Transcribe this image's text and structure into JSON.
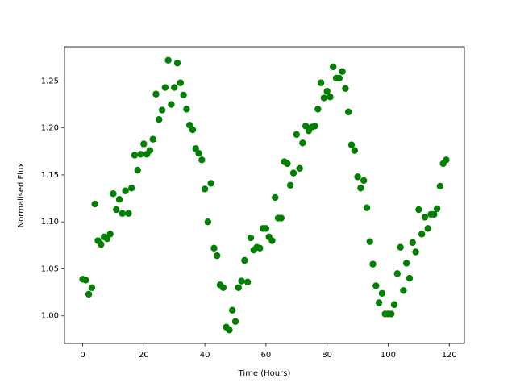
{
  "chart_data": {
    "type": "scatter",
    "xlabel": "Time (Hours)",
    "ylabel": "Normalised Flux",
    "color": "#008000",
    "x": [
      0,
      1,
      2,
      3,
      4,
      5,
      6,
      7,
      8,
      9,
      10,
      11,
      12,
      13,
      14,
      15,
      16,
      17,
      18,
      19,
      20,
      21,
      22,
      23,
      24,
      25,
      26,
      27,
      28,
      29,
      30,
      31,
      32,
      33,
      34,
      35,
      36,
      37,
      38,
      39,
      40,
      41,
      42,
      43,
      44,
      45,
      46,
      47,
      48,
      49,
      50,
      51,
      52,
      53,
      54,
      55,
      56,
      57,
      58,
      59,
      60,
      61,
      62,
      63,
      64,
      65,
      66,
      67,
      68,
      69,
      70,
      71,
      72,
      73,
      74,
      75,
      76,
      77,
      78,
      79,
      80,
      81,
      82,
      83,
      84,
      85,
      86,
      87,
      88,
      89,
      90,
      91,
      92,
      93,
      94,
      95,
      96,
      97,
      98,
      99,
      100,
      101,
      102,
      103,
      104,
      105,
      106,
      107,
      108,
      109,
      110,
      111,
      112,
      113,
      114,
      115,
      116,
      117,
      118,
      119
    ],
    "values": [
      1.039,
      1.038,
      1.023,
      1.03,
      1.119,
      1.08,
      1.076,
      1.084,
      1.082,
      1.087,
      1.13,
      1.113,
      1.124,
      1.109,
      1.133,
      1.109,
      1.136,
      1.171,
      1.155,
      1.172,
      1.183,
      1.172,
      1.176,
      1.188,
      1.236,
      1.209,
      1.219,
      1.243,
      1.272,
      1.225,
      1.243,
      1.269,
      1.248,
      1.235,
      1.22,
      1.203,
      1.198,
      1.178,
      1.173,
      1.166,
      1.135,
      1.1,
      1.141,
      1.072,
      1.064,
      1.033,
      1.03,
      0.988,
      0.985,
      1.006,
      0.994,
      1.03,
      1.037,
      1.059,
      1.036,
      1.083,
      1.07,
      1.073,
      1.072,
      1.093,
      1.093,
      1.084,
      1.08,
      1.126,
      1.104,
      1.104,
      1.164,
      1.162,
      1.139,
      1.152,
      1.193,
      1.157,
      1.184,
      1.202,
      1.197,
      1.201,
      1.202,
      1.22,
      1.248,
      1.232,
      1.239,
      1.233,
      1.265,
      1.253,
      1.253,
      1.26,
      1.242,
      1.217,
      1.182,
      1.176,
      1.148,
      1.136,
      1.144,
      1.115,
      1.079,
      1.055,
      1.032,
      1.014,
      1.024,
      1.002,
      1.002,
      1.002,
      1.012,
      1.045,
      1.073,
      1.027,
      1.056,
      1.04,
      1.078,
      1.068,
      1.113,
      1.087,
      1.105,
      1.093,
      1.108,
      1.108,
      1.114,
      1.138,
      1.162,
      1.166
    ],
    "xlim": [
      -5.95,
      124.95
    ],
    "xticks": [
      0,
      20,
      40,
      60,
      80,
      100,
      120
    ],
    "ylim": [
      0.9706,
      1.2864
    ],
    "yticks": [
      {
        "value": 1.0,
        "label": "1.00"
      },
      1.05,
      {
        "value": 1.1,
        "label": "1.10"
      },
      1.15,
      {
        "value": 1.2,
        "label": "1.20"
      },
      1.25
    ]
  }
}
